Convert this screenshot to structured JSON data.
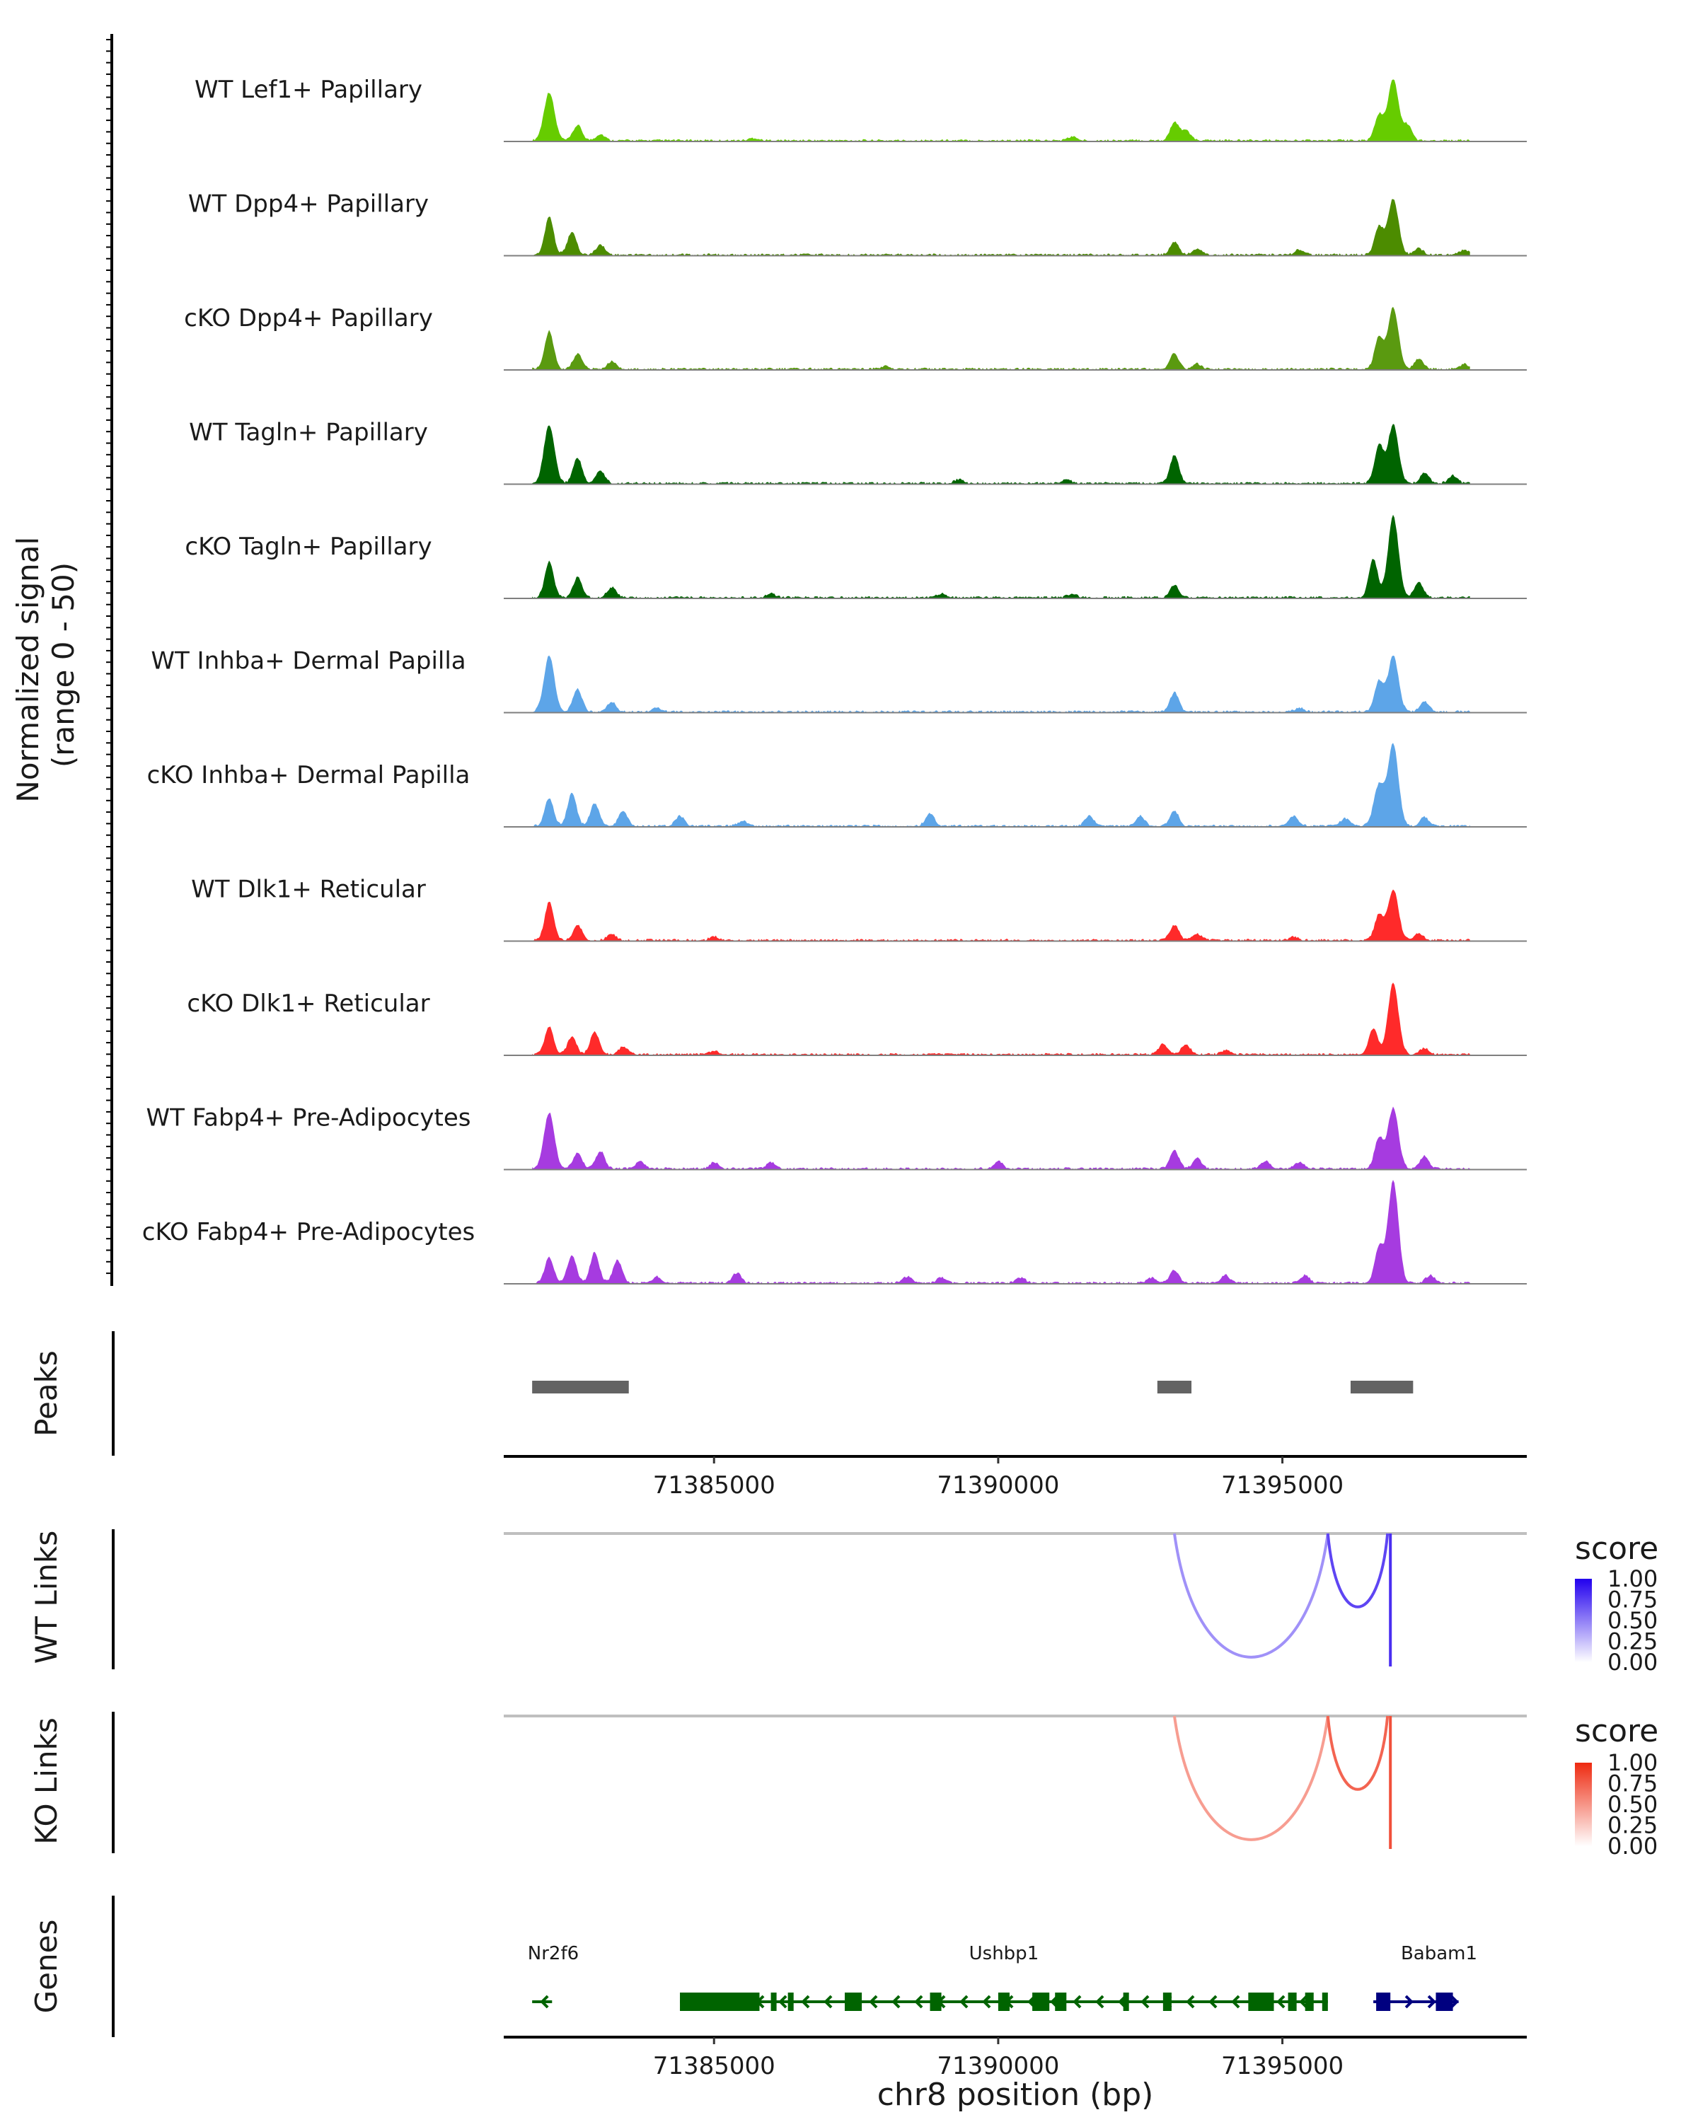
{
  "chart_data": {
    "type": "area",
    "title": "",
    "xlabel": "chr8 position (bp)",
    "ylabel": "Normalized signal\n(range 0 - 50)",
    "ylim": [
      0,
      50
    ],
    "xlim": [
      71381300,
      71399300
    ],
    "x_ticks": [
      71385000,
      71390000,
      71395000
    ],
    "x_tick_labels": [
      "71385000",
      "71390000",
      "71395000"
    ],
    "coverage_tracks": [
      {
        "name": "WT Lef1+ Papillary",
        "color": "#66CC00",
        "peaks": [
          [
            71382100,
            38
          ],
          [
            71382600,
            12
          ],
          [
            71383000,
            5
          ],
          [
            71393100,
            14
          ],
          [
            71393300,
            8
          ],
          [
            71396700,
            20
          ],
          [
            71396950,
            48
          ],
          [
            71397200,
            12
          ],
          [
            71391300,
            3
          ],
          [
            71385700,
            2
          ]
        ]
      },
      {
        "name": "WT Dpp4+ Papillary",
        "color": "#4C8C00",
        "peaks": [
          [
            71382100,
            30
          ],
          [
            71382500,
            18
          ],
          [
            71383000,
            8
          ],
          [
            71393100,
            10
          ],
          [
            71393500,
            5
          ],
          [
            71396700,
            22
          ],
          [
            71396950,
            44
          ],
          [
            71397400,
            5
          ],
          [
            71398200,
            4
          ],
          [
            71395300,
            4
          ]
        ]
      },
      {
        "name": "cKO Dpp4+ Papillary",
        "color": "#5A9A10",
        "peaks": [
          [
            71382100,
            30
          ],
          [
            71382600,
            12
          ],
          [
            71383200,
            6
          ],
          [
            71393100,
            12
          ],
          [
            71393500,
            4
          ],
          [
            71396700,
            25
          ],
          [
            71396950,
            48
          ],
          [
            71397400,
            8
          ],
          [
            71398200,
            4
          ],
          [
            71388000,
            2
          ]
        ]
      },
      {
        "name": "WT Tagln+ Papillary",
        "color": "#006400",
        "peaks": [
          [
            71382100,
            46
          ],
          [
            71382600,
            20
          ],
          [
            71383000,
            10
          ],
          [
            71393100,
            22
          ],
          [
            71396700,
            30
          ],
          [
            71396950,
            46
          ],
          [
            71397500,
            8
          ],
          [
            71398000,
            6
          ],
          [
            71389300,
            3
          ],
          [
            71391200,
            3
          ]
        ]
      },
      {
        "name": "cKO Tagln+ Papillary",
        "color": "#006400",
        "peaks": [
          [
            71382100,
            28
          ],
          [
            71382600,
            16
          ],
          [
            71383200,
            8
          ],
          [
            71393100,
            10
          ],
          [
            71396600,
            30
          ],
          [
            71396950,
            64
          ],
          [
            71397400,
            12
          ],
          [
            71389000,
            3
          ],
          [
            71391300,
            3
          ],
          [
            71386000,
            3
          ]
        ]
      },
      {
        "name": "WT Inhba+ Dermal Papilla",
        "color": "#5DA5E8",
        "peaks": [
          [
            71382100,
            44
          ],
          [
            71382600,
            18
          ],
          [
            71383200,
            8
          ],
          [
            71393100,
            15
          ],
          [
            71396700,
            24
          ],
          [
            71396950,
            44
          ],
          [
            71397500,
            8
          ],
          [
            71395300,
            3
          ],
          [
            71384000,
            3
          ]
        ]
      },
      {
        "name": "cKO Inhba+ Dermal Papilla",
        "color": "#5DA5E8",
        "peaks": [
          [
            71382100,
            22
          ],
          [
            71382500,
            26
          ],
          [
            71382900,
            18
          ],
          [
            71383400,
            12
          ],
          [
            71384400,
            8
          ],
          [
            71385500,
            4
          ],
          [
            71388800,
            10
          ],
          [
            71391600,
            8
          ],
          [
            71392500,
            8
          ],
          [
            71393100,
            12
          ],
          [
            71395200,
            8
          ],
          [
            71396100,
            6
          ],
          [
            71396700,
            32
          ],
          [
            71396950,
            64
          ],
          [
            71397500,
            7
          ]
        ]
      },
      {
        "name": "WT Dlk1+ Reticular",
        "color": "#FF2A2A",
        "peaks": [
          [
            71382100,
            30
          ],
          [
            71382600,
            12
          ],
          [
            71383200,
            5
          ],
          [
            71393100,
            12
          ],
          [
            71393500,
            5
          ],
          [
            71396700,
            20
          ],
          [
            71396950,
            40
          ],
          [
            71397400,
            5
          ],
          [
            71385000,
            3
          ],
          [
            71395200,
            3
          ]
        ]
      },
      {
        "name": "cKO Dlk1+ Reticular",
        "color": "#FF2A2A",
        "peaks": [
          [
            71382100,
            22
          ],
          [
            71382500,
            14
          ],
          [
            71382900,
            18
          ],
          [
            71383400,
            6
          ],
          [
            71392900,
            8
          ],
          [
            71393300,
            8
          ],
          [
            71396600,
            20
          ],
          [
            71396950,
            56
          ],
          [
            71397500,
            5
          ],
          [
            71385000,
            3
          ],
          [
            71394000,
            3
          ]
        ]
      },
      {
        "name": "WT Fabp4+ Pre-Adipocytes",
        "color": "#A63BE0",
        "peaks": [
          [
            71382100,
            44
          ],
          [
            71382600,
            12
          ],
          [
            71383000,
            14
          ],
          [
            71383700,
            6
          ],
          [
            71385000,
            5
          ],
          [
            71386000,
            5
          ],
          [
            71390000,
            6
          ],
          [
            71393100,
            14
          ],
          [
            71393500,
            8
          ],
          [
            71394700,
            6
          ],
          [
            71395300,
            5
          ],
          [
            71396700,
            24
          ],
          [
            71396950,
            48
          ],
          [
            71397500,
            10
          ]
        ]
      },
      {
        "name": "cKO Fabp4+ Pre-Adipocytes",
        "color": "#A63BE0",
        "peaks": [
          [
            71382100,
            20
          ],
          [
            71382500,
            22
          ],
          [
            71382900,
            24
          ],
          [
            71383300,
            18
          ],
          [
            71384000,
            5
          ],
          [
            71385400,
            8
          ],
          [
            71388400,
            5
          ],
          [
            71389000,
            4
          ],
          [
            71390400,
            4
          ],
          [
            71392700,
            4
          ],
          [
            71393100,
            10
          ],
          [
            71394000,
            6
          ],
          [
            71395400,
            6
          ],
          [
            71396700,
            28
          ],
          [
            71396950,
            80
          ],
          [
            71397600,
            6
          ]
        ]
      }
    ],
    "peaks_track": {
      "label": "Peaks",
      "regions": [
        [
          71381800,
          71383500
        ],
        [
          71392800,
          71393400
        ],
        [
          71396200,
          71397300
        ]
      ]
    },
    "links_tracks": [
      {
        "label": "WT Links",
        "legend_title": "score",
        "legend_ticks": [
          "1.00",
          "0.75",
          "0.50",
          "0.25",
          "0.00"
        ],
        "low_color": "#FFFFFF",
        "high_color": "#2200EE",
        "links": [
          {
            "start": 71393100,
            "end": 71395800,
            "score": 0.3
          },
          {
            "start": 71395800,
            "end": 71396850,
            "score": 0.8
          },
          {
            "start": 71396850,
            "end": 71396900,
            "score": 0.95
          }
        ]
      },
      {
        "label": "KO Links",
        "legend_title": "score",
        "legend_ticks": [
          "1.00",
          "0.75",
          "0.50",
          "0.25",
          "0.00"
        ],
        "low_color": "#FFFFFF",
        "high_color": "#EE2A10",
        "links": [
          {
            "start": 71393100,
            "end": 71395800,
            "score": 0.35
          },
          {
            "start": 71395800,
            "end": 71396850,
            "score": 0.8
          },
          {
            "start": 71396850,
            "end": 71396900,
            "score": 0.95
          }
        ]
      }
    ],
    "genes_track": {
      "label": "Genes",
      "genes": [
        {
          "name": "Nr2f6",
          "strand": "-",
          "start": 71381800,
          "end": 71382150,
          "color": "#006400",
          "exons": []
        },
        {
          "name": "Ushbp1",
          "strand": "-",
          "start": 71384400,
          "end": 71395800,
          "color": "#006400",
          "exons": [
            [
              71384400,
              71385800
            ],
            [
              71386000,
              71386100
            ],
            [
              71386300,
              71386400
            ],
            [
              71387300,
              71387600
            ],
            [
              71388800,
              71389000
            ],
            [
              71390000,
              71390200
            ],
            [
              71390600,
              71390900
            ],
            [
              71391000,
              71391200
            ],
            [
              71392200,
              71392300
            ],
            [
              71392900,
              71393050
            ],
            [
              71394400,
              71394850
            ],
            [
              71395100,
              71395250
            ],
            [
              71395400,
              71395550
            ],
            [
              71395700,
              71395800
            ]
          ]
        },
        {
          "name": "Babam1",
          "strand": "+",
          "start": 71396600,
          "end": 71398100,
          "color": "#000080",
          "exons": [
            [
              71396650,
              71396900
            ],
            [
              71397700,
              71398000
            ]
          ]
        }
      ]
    }
  }
}
